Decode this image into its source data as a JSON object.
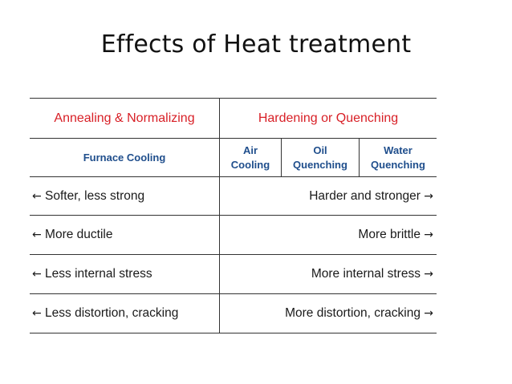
{
  "title": "Effects of Heat treatment",
  "header": {
    "left": "Annealing & Normalizing",
    "right": "Hardening or Quenching"
  },
  "subheader": {
    "furnace": "Furnace Cooling",
    "air": [
      "Air",
      "Cooling"
    ],
    "oil": [
      "Oil",
      "Quenching"
    ],
    "water": [
      "Water",
      "Quenching"
    ]
  },
  "rows": [
    {
      "left": "Softer, less strong",
      "right": "Harder and stronger"
    },
    {
      "left": "More ductile",
      "right": "More brittle"
    },
    {
      "left": "Less internal stress",
      "right": "More internal stress"
    },
    {
      "left": "Less distortion, cracking",
      "right": "More distortion, cracking"
    }
  ],
  "arrows": {
    "left": "←",
    "right": "→"
  },
  "colors": {
    "header": "#d81f26",
    "subheader": "#1f4e8c"
  }
}
